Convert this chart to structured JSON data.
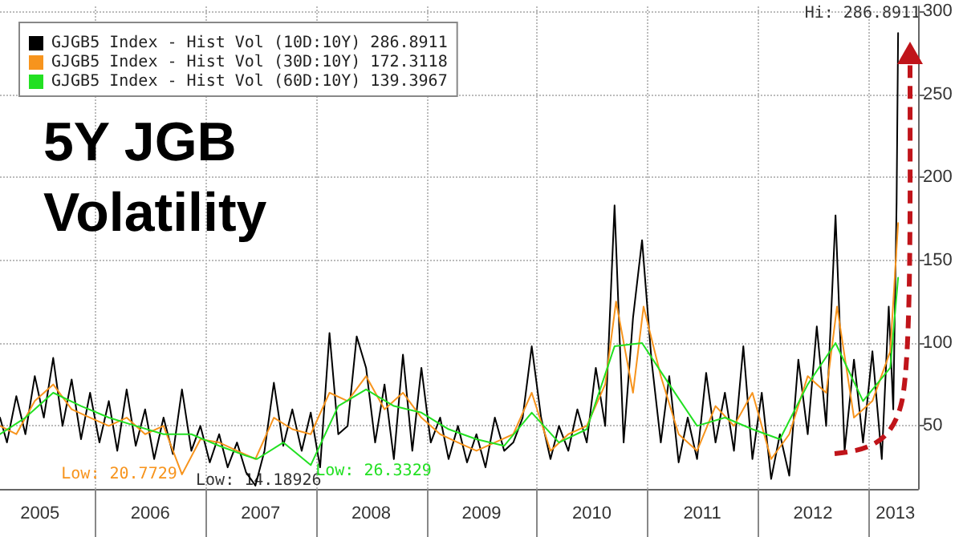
{
  "chart_data": {
    "type": "line",
    "title": "5Y JGB Volatility",
    "xlim": [
      "2005-02-20",
      "2013-06-15"
    ],
    "xticks": [
      {
        "value": "2005-07-02",
        "label": "2005"
      },
      {
        "value": "2006-01-01",
        "label": null
      },
      {
        "value": "2006-07-02",
        "label": "2006"
      },
      {
        "value": "2007-01-01",
        "label": null
      },
      {
        "value": "2007-07-02",
        "label": "2007"
      },
      {
        "value": "2008-01-01",
        "label": null
      },
      {
        "value": "2008-07-02",
        "label": "2008"
      },
      {
        "value": "2009-01-01",
        "label": null
      },
      {
        "value": "2009-07-02",
        "label": "2009"
      },
      {
        "value": "2010-01-01",
        "label": null
      },
      {
        "value": "2010-07-02",
        "label": "2010"
      },
      {
        "value": "2011-01-01",
        "label": null
      },
      {
        "value": "2011-07-02",
        "label": "2011"
      },
      {
        "value": "2012-01-01",
        "label": null
      },
      {
        "value": "2012-07-02",
        "label": "2012"
      },
      {
        "value": "2013-01-01",
        "label": null
      },
      {
        "value": "2013-04-01",
        "label": "2013"
      }
    ],
    "ylim": [
      12,
      303
    ],
    "yticks": [
      50,
      100,
      150,
      200,
      250,
      300
    ],
    "grid": true,
    "legend": "top left",
    "marker": "none",
    "line_style": "solid",
    "series": [
      {
        "name": "GJGB5 Index - Hist Vol (10D:10Y) 286.8911",
        "color": "#000000",
        "x": [
          "2005-02-20",
          "2005-03-15",
          "2005-04-15",
          "2005-05-15",
          "2005-06-15",
          "2005-07-15",
          "2005-08-15",
          "2005-09-15",
          "2005-10-15",
          "2005-11-15",
          "2005-12-15",
          "2006-01-15",
          "2006-02-15",
          "2006-03-15",
          "2006-04-15",
          "2006-05-15",
          "2006-06-15",
          "2006-07-15",
          "2006-08-15",
          "2006-09-15",
          "2006-10-15",
          "2006-11-15",
          "2006-12-15",
          "2007-01-15",
          "2007-02-15",
          "2007-03-15",
          "2007-04-15",
          "2007-05-15",
          "2007-06-15",
          "2007-07-15",
          "2007-08-15",
          "2007-09-15",
          "2007-10-15",
          "2007-11-15",
          "2007-12-15",
          "2008-01-15",
          "2008-02-15",
          "2008-03-15",
          "2008-04-15",
          "2008-05-15",
          "2008-06-15",
          "2008-07-15",
          "2008-08-15",
          "2008-09-15",
          "2008-10-15",
          "2008-11-15",
          "2008-12-15",
          "2009-01-15",
          "2009-02-15",
          "2009-03-15",
          "2009-04-15",
          "2009-05-15",
          "2009-06-15",
          "2009-07-15",
          "2009-08-15",
          "2009-09-15",
          "2009-10-15",
          "2009-11-15",
          "2009-12-15",
          "2010-01-15",
          "2010-02-15",
          "2010-03-15",
          "2010-04-15",
          "2010-05-15",
          "2010-06-15",
          "2010-07-15",
          "2010-08-15",
          "2010-09-15",
          "2010-10-15",
          "2010-11-15",
          "2010-12-15",
          "2011-01-15",
          "2011-02-15",
          "2011-03-15",
          "2011-04-15",
          "2011-05-15",
          "2011-06-15",
          "2011-07-15",
          "2011-08-15",
          "2011-09-15",
          "2011-10-15",
          "2011-11-15",
          "2011-12-15",
          "2012-01-15",
          "2012-02-15",
          "2012-03-15",
          "2012-04-15",
          "2012-05-15",
          "2012-06-15",
          "2012-07-15",
          "2012-08-15",
          "2012-09-15",
          "2012-10-15",
          "2012-11-15",
          "2012-12-15",
          "2013-01-15",
          "2013-02-15",
          "2013-03-10",
          "2013-03-25",
          "2013-04-05",
          "2013-04-10"
        ],
        "values": [
          55,
          40,
          68,
          45,
          80,
          55,
          91,
          50,
          78,
          42,
          70,
          40,
          65,
          35,
          72,
          38,
          60,
          30,
          55,
          33,
          72,
          35,
          50,
          28,
          45,
          25,
          40,
          22,
          14,
          35,
          76,
          38,
          60,
          35,
          58,
          25,
          106,
          45,
          50,
          104,
          85,
          40,
          75,
          30,
          93,
          35,
          85,
          40,
          55,
          30,
          50,
          28,
          45,
          25,
          55,
          35,
          40,
          55,
          98,
          55,
          30,
          50,
          35,
          60,
          40,
          85,
          50,
          183,
          40,
          115,
          162,
          90,
          40,
          80,
          28,
          55,
          30,
          82,
          40,
          70,
          35,
          98,
          30,
          70,
          18,
          45,
          20,
          90,
          45,
          110,
          50,
          177,
          35,
          90,
          40,
          95,
          30,
          122,
          60,
          185,
          286.8911
        ]
      },
      {
        "name": "GJGB5 Index - Hist Vol (30D:10Y) 172.3118",
        "color": "#f7941d",
        "x": [
          "2005-02-20",
          "2005-04-15",
          "2005-06-15",
          "2005-08-15",
          "2005-10-15",
          "2005-12-15",
          "2006-02-15",
          "2006-04-15",
          "2006-06-15",
          "2006-08-15",
          "2006-10-15",
          "2006-12-15",
          "2007-02-15",
          "2007-04-15",
          "2007-06-15",
          "2007-08-15",
          "2007-10-15",
          "2007-12-15",
          "2008-02-15",
          "2008-04-15",
          "2008-06-15",
          "2008-08-15",
          "2008-10-15",
          "2008-12-15",
          "2009-02-15",
          "2009-04-15",
          "2009-06-15",
          "2009-08-15",
          "2009-10-15",
          "2009-12-15",
          "2010-02-15",
          "2010-04-15",
          "2010-06-15",
          "2010-08-15",
          "2010-09-20",
          "2010-11-15",
          "2010-12-20",
          "2011-02-15",
          "2011-04-15",
          "2011-06-15",
          "2011-08-15",
          "2011-10-15",
          "2011-12-15",
          "2012-02-15",
          "2012-04-15",
          "2012-06-15",
          "2012-08-15",
          "2012-09-20",
          "2012-11-15",
          "2013-01-15",
          "2013-03-15",
          "2013-04-10"
        ],
        "values": [
          50,
          45,
          65,
          75,
          60,
          55,
          50,
          55,
          45,
          50,
          20.7729,
          42,
          40,
          35,
          30,
          55,
          48,
          45,
          70,
          65,
          80,
          60,
          70,
          55,
          45,
          40,
          35,
          40,
          45,
          70,
          35,
          45,
          50,
          75,
          125,
          70,
          122,
          80,
          45,
          35,
          62,
          50,
          70,
          30,
          45,
          80,
          70,
          122,
          55,
          65,
          95,
          172.3118
        ]
      },
      {
        "name": "GJGB5 Index - Hist Vol (60D:10Y) 139.3967",
        "color": "#22e022",
        "x": [
          "2005-02-20",
          "2005-05-15",
          "2005-08-15",
          "2005-11-15",
          "2006-02-15",
          "2006-05-15",
          "2006-08-15",
          "2006-11-15",
          "2007-02-15",
          "2007-05-15",
          "2007-06-20",
          "2007-09-15",
          "2007-12-15",
          "2008-03-15",
          "2008-06-15",
          "2008-09-15",
          "2008-12-15",
          "2009-03-15",
          "2009-06-15",
          "2009-09-15",
          "2009-12-15",
          "2010-03-15",
          "2010-06-15",
          "2010-09-15",
          "2010-12-15",
          "2011-03-15",
          "2011-06-15",
          "2011-09-15",
          "2011-12-15",
          "2012-03-15",
          "2012-06-15",
          "2012-09-15",
          "2012-12-15",
          "2013-03-15",
          "2013-04-10"
        ],
        "values": [
          45,
          55,
          70,
          62,
          55,
          50,
          45,
          45,
          38,
          32,
          30,
          40,
          26.3329,
          62,
          72,
          62,
          58,
          48,
          42,
          38,
          58,
          40,
          48,
          98,
          100,
          75,
          50,
          55,
          48,
          42,
          75,
          100,
          65,
          85,
          139.3967
        ]
      }
    ],
    "annotations": [
      {
        "text": "Hi: 286.8911",
        "x": "2013-04-10",
        "y": 286.8911
      },
      {
        "text": "Low: 20.7729",
        "x": "2006-10-15",
        "y": 20.7729
      },
      {
        "text": "Low: 14.18926",
        "x": "2007-06-15",
        "y": 14
      },
      {
        "text": "Low: 26.3329",
        "x": "2007-12-15",
        "y": 26.3329
      }
    ]
  }
}
